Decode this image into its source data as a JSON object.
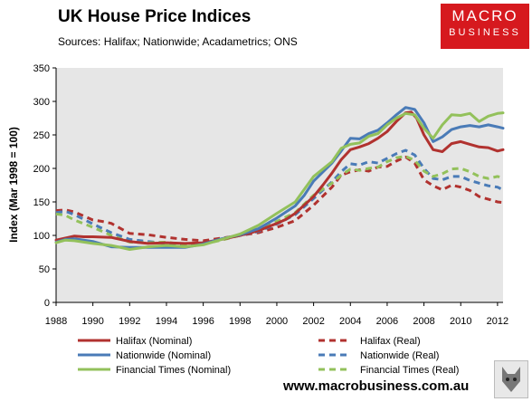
{
  "header": {
    "title": "UK House Price Indices",
    "subtitle": "Sources: Halifax; Nationwide; Acadametrics; ONS"
  },
  "logo": {
    "line1": "MACRO",
    "line2": "BUSINESS"
  },
  "footer": {
    "url": "www.macrobusiness.com.au"
  },
  "colors": {
    "plot_background": "#e6e6e6",
    "red": "#b1322f",
    "blue": "#4a7bb7",
    "green": "#93c15b",
    "brand_red": "#d6191e"
  },
  "chart_data": {
    "type": "line",
    "title": "UK House Price Indices",
    "ylabel": "Index (Mar 1998 = 100)",
    "xlabel": "",
    "xlim": [
      1988,
      2012.3
    ],
    "ylim": [
      0,
      350
    ],
    "x_ticks": [
      1988,
      1990,
      1992,
      1994,
      1996,
      1998,
      2000,
      2002,
      2004,
      2006,
      2008,
      2010,
      2012
    ],
    "y_ticks": [
      0,
      50,
      100,
      150,
      200,
      250,
      300,
      350
    ],
    "grid": false,
    "legend_position": "bottom",
    "series": [
      {
        "name": "Halifax (Nominal)",
        "color": "#b1322f",
        "style": "solid",
        "x": [
          1988,
          1988.5,
          1989,
          1989.5,
          1990,
          1991,
          1992,
          1993,
          1994,
          1995,
          1996,
          1997,
          1998,
          1999,
          2000,
          2000.5,
          2001,
          2002,
          2002.5,
          2003,
          2003.5,
          2004,
          2004.5,
          2005,
          2005.5,
          2006,
          2006.5,
          2007,
          2007.3,
          2007.6,
          2008,
          2008.5,
          2009,
          2009.5,
          2010,
          2010.5,
          2011,
          2011.5,
          2012,
          2012.3
        ],
        "y": [
          93,
          96,
          99,
          98,
          98,
          97,
          91,
          88,
          89,
          88,
          89,
          94,
          100,
          107,
          118,
          124,
          133,
          158,
          175,
          193,
          213,
          228,
          232,
          237,
          245,
          255,
          270,
          283,
          284,
          275,
          250,
          228,
          225,
          237,
          240,
          236,
          232,
          231,
          226,
          228
        ]
      },
      {
        "name": "Halifax (Real)",
        "color": "#b1322f",
        "style": "dashed",
        "x": [
          1988,
          1988.5,
          1989,
          1990,
          1990.5,
          1991,
          1992,
          1993,
          1994,
          1995,
          1996,
          1997,
          1998,
          1999,
          2000,
          2001,
          2002,
          2003,
          2003.5,
          2004,
          2004.5,
          2005,
          2005.5,
          2006,
          2006.5,
          2007,
          2007.5,
          2008,
          2008.5,
          2009,
          2009.5,
          2010,
          2010.5,
          2011,
          2012,
          2012.3
        ],
        "y": [
          137,
          138,
          135,
          123,
          121,
          118,
          103,
          101,
          97,
          94,
          92,
          96,
          100,
          104,
          112,
          122,
          145,
          172,
          190,
          195,
          198,
          196,
          202,
          203,
          211,
          217,
          208,
          183,
          174,
          168,
          175,
          172,
          167,
          158,
          150,
          149
        ]
      },
      {
        "name": "Nationwide (Nominal)",
        "color": "#4a7bb7",
        "style": "solid",
        "x": [
          1988,
          1988.5,
          1989,
          1990,
          1991,
          1992,
          1993,
          1994,
          1995,
          1996,
          1997,
          1998,
          1999,
          2000,
          2001,
          2001.5,
          2002,
          2003,
          2003.5,
          2004,
          2004.5,
          2005,
          2005.5,
          2006,
          2006.5,
          2007,
          2007.5,
          2008,
          2008.5,
          2009,
          2009.5,
          2010,
          2010.5,
          2011,
          2011.5,
          2012,
          2012.3
        ],
        "y": [
          90,
          94,
          95,
          91,
          83,
          82,
          82,
          82,
          82,
          87,
          95,
          101,
          110,
          126,
          144,
          160,
          181,
          208,
          226,
          245,
          244,
          252,
          257,
          268,
          280,
          291,
          288,
          268,
          240,
          247,
          258,
          262,
          264,
          262,
          265,
          262,
          260
        ]
      },
      {
        "name": "Nationwide (Real)",
        "color": "#4a7bb7",
        "style": "dashed",
        "x": [
          1988,
          1988.5,
          1989,
          1990,
          1991,
          1992,
          1993,
          1994,
          1995,
          1996,
          1997,
          1998,
          1999,
          2000,
          2001,
          2002,
          2003,
          2003.5,
          2004,
          2004.5,
          2005,
          2005.5,
          2006,
          2006.5,
          2007,
          2007.5,
          2008,
          2008.5,
          2009,
          2009.5,
          2010,
          2010.5,
          2011,
          2011.5,
          2012,
          2012.3
        ],
        "y": [
          134,
          136,
          131,
          117,
          104,
          94,
          91,
          88,
          86,
          89,
          94,
          100,
          106,
          117,
          131,
          155,
          180,
          195,
          207,
          205,
          210,
          208,
          215,
          222,
          227,
          220,
          200,
          185,
          183,
          188,
          188,
          182,
          178,
          174,
          172,
          168
        ]
      },
      {
        "name": "Financial Times (Nominal)",
        "color": "#93c15b",
        "style": "solid",
        "x": [
          1988,
          1988.5,
          1989,
          1990,
          1991,
          1992,
          1993,
          1994,
          1995,
          1996,
          1997,
          1998,
          1999,
          2000,
          2001,
          2002,
          2003,
          2003.5,
          2004,
          2004.5,
          2005,
          2005.5,
          2006,
          2006.5,
          2007,
          2007.5,
          2008,
          2008.5,
          2009,
          2009.5,
          2010,
          2010.5,
          2011,
          2011.5,
          2012,
          2012.3
        ],
        "y": [
          89,
          93,
          92,
          88,
          85,
          79,
          83,
          85,
          83,
          86,
          94,
          102,
          115,
          133,
          150,
          188,
          210,
          230,
          236,
          238,
          248,
          252,
          265,
          275,
          282,
          280,
          260,
          245,
          265,
          280,
          279,
          282,
          270,
          278,
          282,
          283
        ]
      },
      {
        "name": "Financial Times (Real)",
        "color": "#93c15b",
        "style": "dashed",
        "x": [
          1988,
          1988.5,
          1989,
          1990,
          1991,
          1992,
          1993,
          1994,
          1995,
          1996,
          1997,
          1998,
          1999,
          2000,
          2001,
          2002,
          2003,
          2003.5,
          2004,
          2004.5,
          2005,
          2005.5,
          2006,
          2006.5,
          2007,
          2007.5,
          2008,
          2008.5,
          2009,
          2009.5,
          2010,
          2010.5,
          2011,
          2011.5,
          2012,
          2012.3
        ],
        "y": [
          132,
          130,
          123,
          112,
          100,
          90,
          89,
          90,
          86,
          87,
          93,
          100,
          108,
          121,
          134,
          160,
          178,
          190,
          199,
          197,
          200,
          202,
          210,
          216,
          218,
          212,
          196,
          188,
          192,
          199,
          200,
          195,
          188,
          185,
          188,
          186
        ]
      }
    ]
  }
}
